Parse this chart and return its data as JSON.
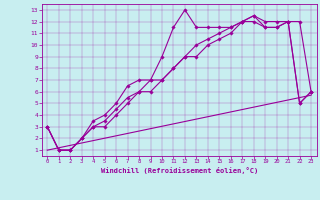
{
  "title": "",
  "xlabel": "Windchill (Refroidissement éolien,°C)",
  "ylabel": "",
  "background_color": "#c8eef0",
  "line_color": "#990099",
  "xlim": [
    -0.5,
    23.5
  ],
  "ylim": [
    0.5,
    13.5
  ],
  "xticks": [
    0,
    1,
    2,
    3,
    4,
    5,
    6,
    7,
    8,
    9,
    10,
    11,
    12,
    13,
    14,
    15,
    16,
    17,
    18,
    19,
    20,
    21,
    22,
    23
  ],
  "yticks": [
    1,
    2,
    3,
    4,
    5,
    6,
    7,
    8,
    9,
    10,
    11,
    12,
    13
  ],
  "line1_x": [
    0,
    1,
    2,
    3,
    4,
    5,
    6,
    7,
    8,
    9,
    10,
    11,
    12,
    13,
    14,
    15,
    16,
    17,
    18,
    19,
    20,
    21,
    22,
    23
  ],
  "line1_y": [
    3,
    1,
    1,
    2,
    3,
    3,
    4,
    5,
    6,
    7,
    9,
    11.5,
    13,
    11.5,
    11.5,
    11.5,
    11.5,
    12,
    12.5,
    12,
    12,
    12,
    12,
    6
  ],
  "line2_x": [
    0,
    1,
    2,
    3,
    4,
    5,
    6,
    7,
    8,
    9,
    10,
    11,
    12,
    13,
    14,
    15,
    16,
    17,
    18,
    19,
    20,
    21,
    22,
    23
  ],
  "line2_y": [
    3,
    1,
    1,
    2,
    3.5,
    4,
    5,
    6.5,
    7,
    7,
    7,
    8,
    9,
    10,
    10.5,
    11,
    11.5,
    12,
    12,
    11.5,
    11.5,
    12,
    5,
    6
  ],
  "line3_x": [
    0,
    1,
    2,
    3,
    4,
    5,
    6,
    7,
    8,
    9,
    10,
    11,
    12,
    13,
    14,
    15,
    16,
    17,
    18,
    19,
    20,
    21,
    22,
    23
  ],
  "line3_y": [
    3,
    1,
    1,
    2,
    3,
    3.5,
    4.5,
    5.5,
    6,
    6,
    7,
    8,
    9,
    9,
    10,
    10.5,
    11,
    12,
    12.5,
    11.5,
    11.5,
    12,
    5,
    6
  ],
  "line4_x": [
    0,
    23
  ],
  "line4_y": [
    1.0,
    5.7
  ],
  "marker": "D",
  "marker_size": 1.8,
  "linewidth": 0.8
}
